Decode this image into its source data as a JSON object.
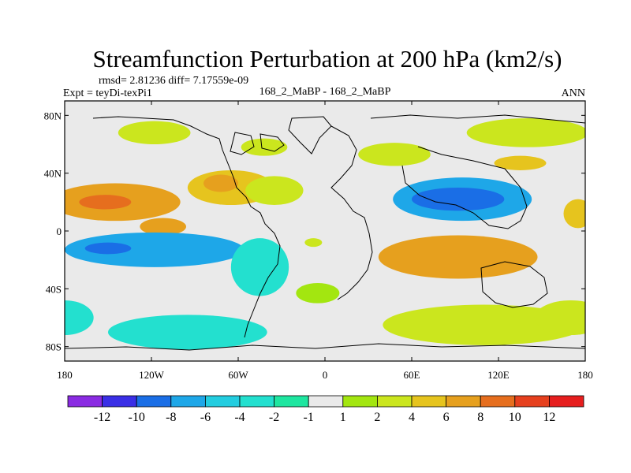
{
  "chart_data": {
    "type": "heatmap",
    "title": "Streamfunction Perturbation at 200 hPa (km2/s)",
    "stats_text": "rmsd= 2.81236 diff= 7.17559e-09",
    "left_label": "Expt = teyDi-texPi1",
    "center_label": "168_2_MaBP - 168_2_MaBP",
    "right_label": "ANN",
    "xlabel": "",
    "ylabel": "",
    "xlim": [
      -180,
      180
    ],
    "ylim": [
      -90,
      90
    ],
    "x_ticks": [
      {
        "value": -180,
        "label": "180"
      },
      {
        "value": -120,
        "label": "120W"
      },
      {
        "value": -60,
        "label": "60W"
      },
      {
        "value": 0,
        "label": "0"
      },
      {
        "value": 60,
        "label": "60E"
      },
      {
        "value": 120,
        "label": "120E"
      },
      {
        "value": 180,
        "label": "180"
      }
    ],
    "y_ticks": [
      {
        "value": 80,
        "label": "80N"
      },
      {
        "value": 40,
        "label": "40N"
      },
      {
        "value": 0,
        "label": "0"
      },
      {
        "value": -40,
        "label": "40S"
      },
      {
        "value": -80,
        "label": "80S"
      }
    ],
    "colorbar": {
      "levels": [
        -12,
        -10,
        -8,
        -6,
        -4,
        -2,
        -1,
        1,
        2,
        4,
        6,
        8,
        10,
        12
      ],
      "labels": [
        "-12",
        "-10",
        "-8",
        "-6",
        "-4",
        "-2",
        "-1",
        "1",
        "2",
        "4",
        "6",
        "8",
        "10",
        "12"
      ],
      "colors": [
        "#8a2be2",
        "#3a2fe6",
        "#1a6ee6",
        "#1ea7e8",
        "#23cde0",
        "#23e0cf",
        "#1ee6a0",
        "#eaeaea",
        "#a3e610",
        "#cbe61e",
        "#e6c41e",
        "#e6a01e",
        "#e66e1e",
        "#e6401e",
        "#e61e1e"
      ]
    },
    "features": [
      {
        "name": "n-pacific-high",
        "lon": -145,
        "lat": 20,
        "rlon": 45,
        "rlat": 13,
        "value": 6.5
      },
      {
        "name": "n-pacific-high-core",
        "lon": -152,
        "lat": 20,
        "rlon": 18,
        "rlat": 5,
        "value": 8.5
      },
      {
        "name": "e-pacific-high",
        "lon": -112,
        "lat": 3,
        "rlon": 16,
        "rlat": 6,
        "value": 6.5
      },
      {
        "name": "atlantic-high",
        "lon": -65,
        "lat": 30,
        "rlon": 30,
        "rlat": 12,
        "value": 5.5
      },
      {
        "name": "atlantic-high-core",
        "lon": -72,
        "lat": 33,
        "rlon": 12,
        "rlat": 6,
        "value": 7
      },
      {
        "name": "e-atlantic-positive",
        "lon": -35,
        "lat": 28,
        "rlon": 20,
        "rlat": 10,
        "value": 3
      },
      {
        "name": "n-canada-positive",
        "lon": -118,
        "lat": 68,
        "rlon": 25,
        "rlat": 8,
        "value": 2.5
      },
      {
        "name": "n-atlantic-positive",
        "lon": -42,
        "lat": 58,
        "rlon": 16,
        "rlat": 6,
        "value": 2.5
      },
      {
        "name": "n-europe-positive",
        "lon": 48,
        "lat": 53,
        "rlon": 25,
        "rlat": 8,
        "value": 3
      },
      {
        "name": "arctic-siberia-positive",
        "lon": 140,
        "lat": 68,
        "rlon": 42,
        "rlat": 10,
        "value": 3
      },
      {
        "name": "n-pacific-positive",
        "lon": 135,
        "lat": 47,
        "rlon": 18,
        "rlat": 5,
        "value": 5
      },
      {
        "name": "c-africa-positive",
        "lon": -8,
        "lat": -8,
        "rlon": 6,
        "rlat": 3,
        "value": 2.5
      },
      {
        "name": "asian-negative",
        "lon": 95,
        "lat": 22,
        "rlon": 48,
        "rlat": 15,
        "value": -7
      },
      {
        "name": "asian-negative-core",
        "lon": 92,
        "lat": 22,
        "rlon": 32,
        "rlat": 8,
        "value": -8.5
      },
      {
        "name": "date-line-negative",
        "lon": 175,
        "lat": 12,
        "rlon": 10,
        "rlat": 10,
        "value": 5
      },
      {
        "name": "sh-indian-positive",
        "lon": 92,
        "lat": -18,
        "rlon": 55,
        "rlat": 15,
        "value": 6.5
      },
      {
        "name": "sh-indian-positive-core",
        "lon": 95,
        "lat": -18,
        "rlon": 32,
        "rlat": 8,
        "value": 8
      },
      {
        "name": "sh-pacific-negative",
        "lon": -118,
        "lat": -13,
        "rlon": 62,
        "rlat": 12,
        "value": -6
      },
      {
        "name": "sh-pacific-negative-core",
        "lon": -150,
        "lat": -12,
        "rlon": 16,
        "rlat": 4,
        "value": -8
      },
      {
        "name": "s-america-negative",
        "lon": -45,
        "lat": -25,
        "rlon": 20,
        "rlat": 20,
        "value": -3.5
      },
      {
        "name": "s-ocean-negative-west",
        "lon": -95,
        "lat": -70,
        "rlon": 55,
        "rlat": 12,
        "value": -3
      },
      {
        "name": "s-ocean-negative-se",
        "lon": -180,
        "lat": -60,
        "rlon": 20,
        "rlat": 12,
        "value": -3
      },
      {
        "name": "s-ocean-positive-east",
        "lon": 110,
        "lat": -65,
        "rlon": 70,
        "rlat": 14,
        "value": 4
      },
      {
        "name": "s-ocean-positive-dateline",
        "lon": 170,
        "lat": -60,
        "rlon": 25,
        "rlat": 12,
        "value": 3
      },
      {
        "name": "s-atlantic-positive",
        "lon": -5,
        "lat": -43,
        "rlon": 15,
        "rlat": 7,
        "value": 1.5
      }
    ]
  }
}
